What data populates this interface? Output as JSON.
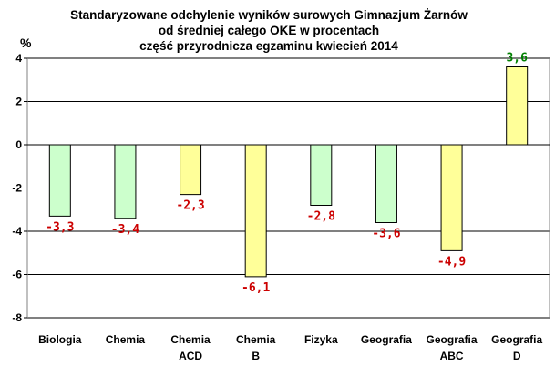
{
  "chart_data": {
    "type": "bar",
    "title_lines": [
      "Standaryzowane odchylenie wyników surowych Gimnazjum Żarnów",
      "od średniej całego OKE w procentach",
      "część przyrodnicza egzaminu kwiecień 2014"
    ],
    "ylabel": "%",
    "ylim": [
      -8,
      4
    ],
    "yticks": [
      4,
      2,
      0,
      -2,
      -4,
      -6,
      -8
    ],
    "grid": true,
    "categories": [
      [
        "Biologia"
      ],
      [
        "Chemia"
      ],
      [
        "Chemia",
        "ACD"
      ],
      [
        "Chemia",
        "B"
      ],
      [
        "Fizyka"
      ],
      [
        "Geografia"
      ],
      [
        "Geografia",
        "ABC"
      ],
      [
        "Geografia",
        "D"
      ]
    ],
    "values": [
      -3.3,
      -3.4,
      -2.3,
      -6.1,
      -2.8,
      -3.6,
      -4.9,
      3.6
    ],
    "value_labels": [
      "-3,3",
      "-3,4",
      "-2,3",
      "-6,1",
      "-2,8",
      "-3,6",
      "-4,9",
      "3,6"
    ],
    "bar_colors": [
      "#ccffcc",
      "#ccffcc",
      "#ffff99",
      "#ffff99",
      "#ccffcc",
      "#ccffcc",
      "#ffff99",
      "#ffff99"
    ],
    "label_colors": [
      "#cc0000",
      "#cc0000",
      "#cc0000",
      "#cc0000",
      "#cc0000",
      "#cc0000",
      "#cc0000",
      "#008000"
    ]
  }
}
